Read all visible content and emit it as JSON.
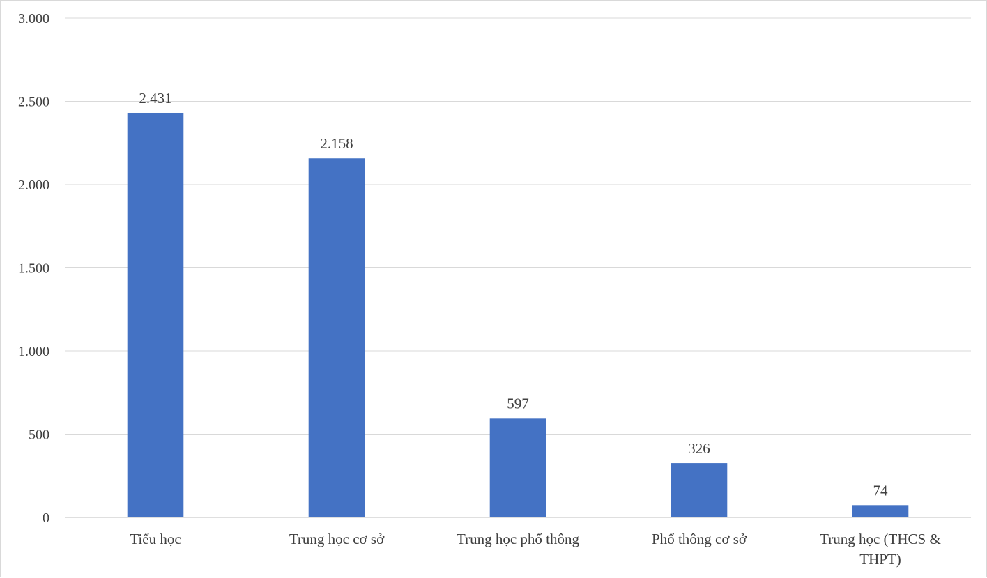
{
  "chart_data": {
    "type": "bar",
    "title": "",
    "xlabel": "",
    "ylabel": "",
    "categories": [
      [
        "Tiểu học"
      ],
      [
        "Trung học cơ sở"
      ],
      [
        "Trung học phổ thông"
      ],
      [
        "Phổ thông cơ sở"
      ],
      [
        "Trung học (THCS &",
        "THPT)"
      ]
    ],
    "values": [
      2431,
      2158,
      597,
      326,
      74
    ],
    "value_labels": [
      "2.431",
      "2.158",
      "597",
      "326",
      "74"
    ],
    "ylim": [
      0,
      3000
    ],
    "yticks": [
      0,
      500,
      1000,
      1500,
      2000,
      2500,
      3000
    ],
    "ytick_labels": [
      "0",
      "500",
      "1.000",
      "1.500",
      "2.000",
      "2.500",
      "3.000"
    ],
    "grid": true,
    "legend": "none",
    "bar_color": "#4472c4"
  }
}
